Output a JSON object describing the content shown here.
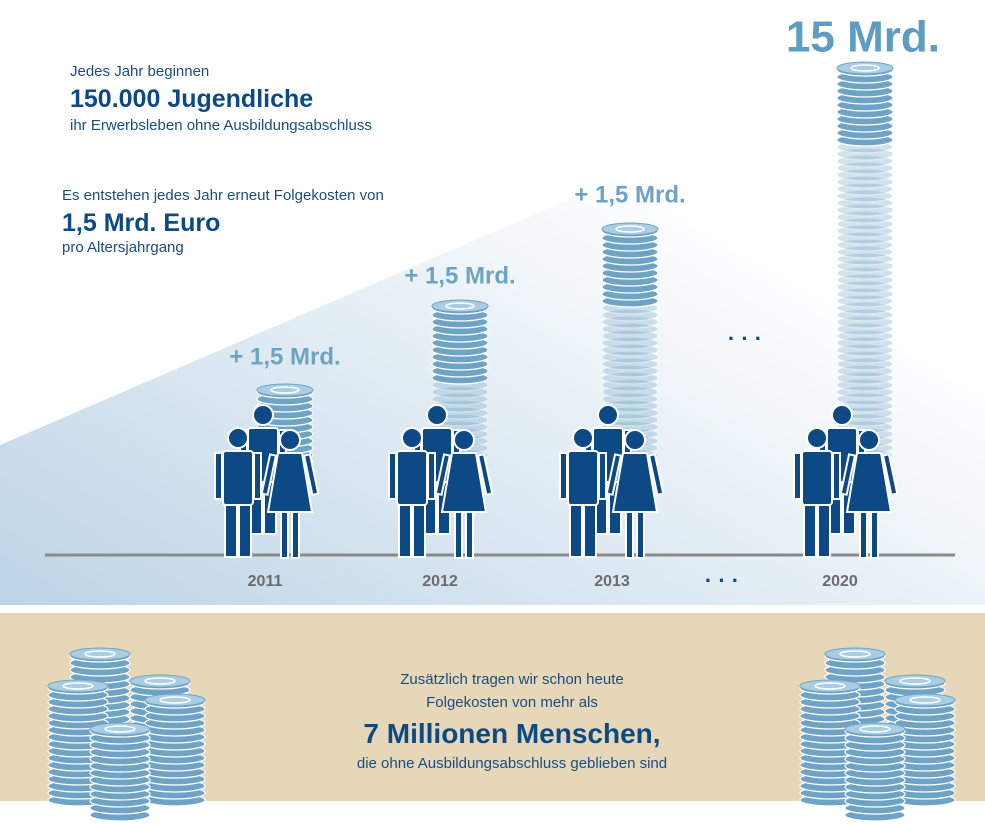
{
  "intro": {
    "line1": "Jedes Jahr beginnen",
    "highlight": "150.000 Jugendliche",
    "line3": "ihr Erwerbsleben ohne Ausbildungsabschluss"
  },
  "costs": {
    "line1": "Es entstehen jedes Jahr erneut Folgekosten von",
    "highlight": "1,5 Mrd. Euro",
    "line3": "pro Altersjahrgang"
  },
  "total": "15 Mrd.",
  "ellipsis": "· · ·",
  "columns": [
    {
      "year": "2011",
      "label": "+ 1,5 Mrd."
    },
    {
      "year": "2012",
      "label": "+ 1,5 Mrd."
    },
    {
      "year": "2013",
      "label": "+ 1,5 Mrd."
    },
    {
      "year": "2020"
    }
  ],
  "bottom": {
    "line1": "Zusätzlich tragen wir schon heute",
    "line2": "Folgekosten von mehr als",
    "highlight": "7 Millionen Menschen",
    "suffix": ",",
    "line4": "die ohne Ausbildungsabschluss geblieben sind"
  }
}
